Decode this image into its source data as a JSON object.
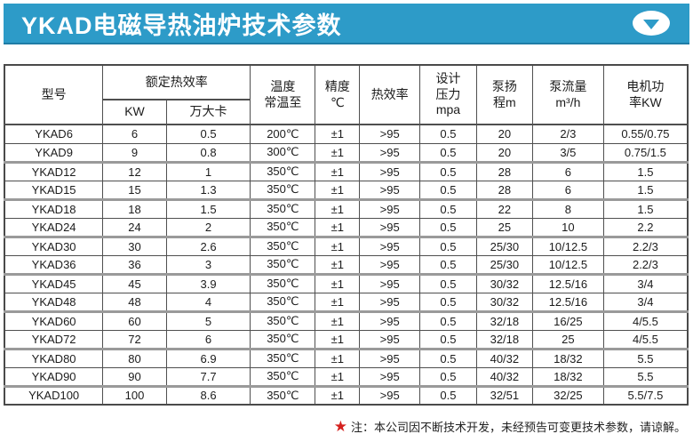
{
  "header": {
    "title": "YKAD电磁导热油炉技术参数",
    "accent_color": "#2d9bc8",
    "icon": "chevron-down-icon"
  },
  "table": {
    "headers": {
      "model": "型号",
      "rated_group": "额定热效率",
      "kw": "KW",
      "wandaka": "万大卡",
      "temp": "温度\n常温至",
      "precision": "精度\n℃",
      "efficiency": "热效率",
      "pressure": "设计\n压力\nmpa",
      "head": "泵扬\n程m",
      "flow": "泵流量\nm³/h",
      "motor": "电机功\n率KW"
    },
    "rows": [
      [
        "YKAD6",
        "6",
        "0.5",
        "200℃",
        "±1",
        ">95",
        "0.5",
        "20",
        "2/3",
        "0.55/0.75"
      ],
      [
        "YKAD9",
        "9",
        "0.8",
        "300℃",
        "±1",
        ">95",
        "0.5",
        "20",
        "3/5",
        "0.75/1.5"
      ],
      [
        "YKAD12",
        "12",
        "1",
        "350℃",
        "±1",
        ">95",
        "0.5",
        "28",
        "6",
        "1.5"
      ],
      [
        "YKAD15",
        "15",
        "1.3",
        "350℃",
        "±1",
        ">95",
        "0.5",
        "28",
        "6",
        "1.5"
      ],
      [
        "YKAD18",
        "18",
        "1.5",
        "350℃",
        "±1",
        ">95",
        "0.5",
        "22",
        "8",
        "1.5"
      ],
      [
        "YKAD24",
        "24",
        "2",
        "350℃",
        "±1",
        ">95",
        "0.5",
        "25",
        "10",
        "2.2"
      ],
      [
        "YKAD30",
        "30",
        "2.6",
        "350℃",
        "±1",
        ">95",
        "0.5",
        "25/30",
        "10/12.5",
        "2.2/3"
      ],
      [
        "YKAD36",
        "36",
        "3",
        "350℃",
        "±1",
        ">95",
        "0.5",
        "25/30",
        "10/12.5",
        "2.2/3"
      ],
      [
        "YKAD45",
        "45",
        "3.9",
        "350℃",
        "±1",
        ">95",
        "0.5",
        "30/32",
        "12.5/16",
        "3/4"
      ],
      [
        "YKAD48",
        "48",
        "4",
        "350℃",
        "±1",
        ">95",
        "0.5",
        "30/32",
        "12.5/16",
        "3/4"
      ],
      [
        "YKAD60",
        "60",
        "5",
        "350℃",
        "±1",
        ">95",
        "0.5",
        "32/18",
        "16/25",
        "4/5.5"
      ],
      [
        "YKAD72",
        "72",
        "6",
        "350℃",
        "±1",
        ">95",
        "0.5",
        "32/18",
        "25",
        "4/5.5"
      ],
      [
        "YKAD80",
        "80",
        "6.9",
        "350℃",
        "±1",
        ">95",
        "0.5",
        "40/32",
        "18/32",
        "5.5"
      ],
      [
        "YKAD90",
        "90",
        "7.7",
        "350℃",
        "±1",
        ">95",
        "0.5",
        "40/32",
        "18/32",
        "5.5"
      ],
      [
        "YKAD100",
        "100",
        "8.6",
        "350℃",
        "±1",
        ">95",
        "0.5",
        "32/51",
        "32/25",
        "5.5/7.5"
      ]
    ],
    "group_end_rows": [
      1,
      3,
      5,
      7,
      9,
      11,
      13
    ],
    "border_color": "#4f4f4f",
    "group_border_color": "#9a9a9a"
  },
  "footnote": {
    "star": "★",
    "star_color": "#d5211e",
    "text": "注：本公司因不断技术开发，未经预告可变更技术参数，请谅解。"
  }
}
